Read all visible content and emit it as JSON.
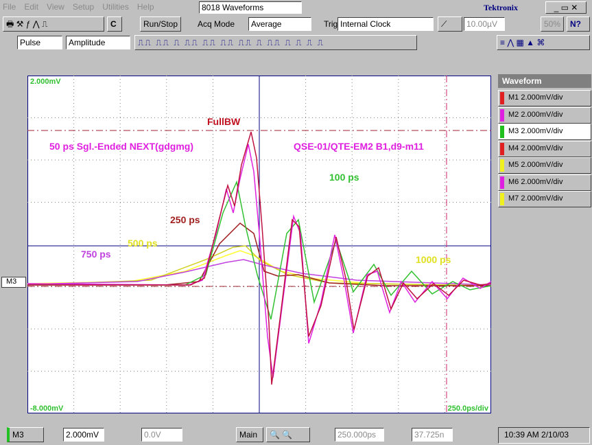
{
  "menu_bar": {
    "items": [
      "File",
      "Edit",
      "View",
      "Setup",
      "Utilities",
      "Help"
    ],
    "window_title": "8018 Waveforms",
    "brand": "Tektronix"
  },
  "toolbar": {
    "c_button": "C",
    "run_stop": "Run/Stop",
    "acq_mode_label": "Acq Mode",
    "acq_mode_value": "Average",
    "trig_label": "Trig",
    "trig_value": "Internal Clock",
    "level": "10.00µV",
    "percent": "50%",
    "help": "N?"
  },
  "measure_bar": {
    "measurement": "Pulse",
    "parameter": "Amplitude"
  },
  "plot": {
    "top_scale": "2.000mV",
    "bottom_scale": "-8.000mV",
    "time_scale": "250.0ps/div",
    "channel_marker": "M3",
    "labels": [
      "FullBW",
      "50 ps Sgl.-Ended NEXT(gdgmg)",
      "QSE-01/QTE-EM2  B1,d9-m11",
      "100 ps",
      "250 ps",
      "750 ps",
      "500 ps",
      "1000 ps"
    ]
  },
  "waveform_panel": {
    "title": "Waveform",
    "items": [
      "M1 2.000mV/div",
      "M2 2.000mV/div",
      "M3 2.000mV/div",
      "M4 2.000mV/div",
      "M5 2.000mV/div",
      "M6 2.000mV/div",
      "M7 2.000mV/div"
    ]
  },
  "status_bar": {
    "channel": "M3",
    "vertical_scale": "2.000mV",
    "offset": "0.0V",
    "timebase": "Main",
    "horizontal_scale": "250.000ps",
    "position": "37.725n",
    "clock": "10:39 AM 2/10/03"
  }
}
